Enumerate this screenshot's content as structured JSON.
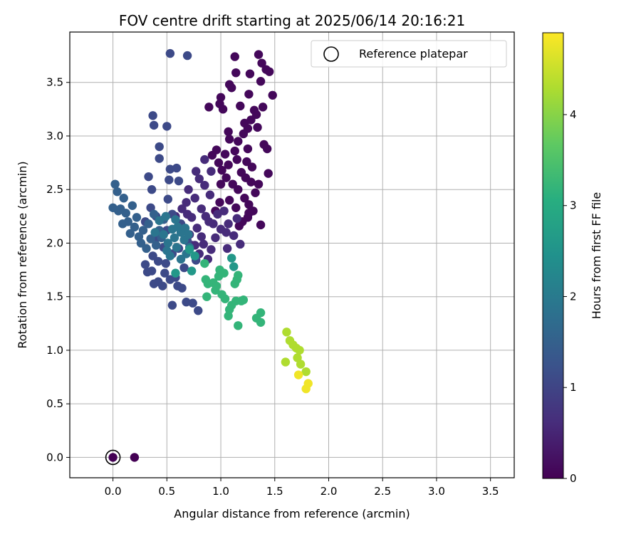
{
  "chart_data": {
    "type": "scatter",
    "title": "FOV centre drift starting at 2025/06/14 20:16:21",
    "xlabel": "Angular distance from reference (arcmin)",
    "ylabel": "Rotation from reference (arcmin)",
    "xlim": [
      -0.4,
      3.72
    ],
    "ylim": [
      -0.19,
      3.97
    ],
    "xticks": [
      0.0,
      0.5,
      1.0,
      1.5,
      2.0,
      2.5,
      3.0,
      3.5
    ],
    "xtick_labels": [
      "0.0",
      "0.5",
      "1.0",
      "1.5",
      "2.0",
      "2.5",
      "3.0",
      "3.5"
    ],
    "yticks": [
      0.0,
      0.5,
      1.0,
      1.5,
      2.0,
      2.5,
      3.0,
      3.5
    ],
    "ytick_labels": [
      "0.0",
      "0.5",
      "1.0",
      "1.5",
      "2.0",
      "2.5",
      "3.0",
      "3.5"
    ],
    "grid": true,
    "legend": {
      "position": "top-right",
      "entries": [
        "Reference platepar"
      ]
    },
    "colorbar": {
      "label": "Hours from first FF file",
      "range": [
        0,
        4.9
      ],
      "ticks": [
        0,
        1,
        2,
        3,
        4
      ],
      "tick_labels": [
        "0",
        "1",
        "2",
        "3",
        "4"
      ],
      "colormap": "viridis"
    },
    "reference_point": {
      "x": 0.0,
      "y": 0.0,
      "hours": 0.0
    },
    "points": [
      [
        1.13,
        3.74,
        0.1
      ],
      [
        1.35,
        3.76,
        0.1
      ],
      [
        1.38,
        3.68,
        0.1
      ],
      [
        1.42,
        3.62,
        0.1
      ],
      [
        1.45,
        3.6,
        0.1
      ],
      [
        1.14,
        3.59,
        0.1
      ],
      [
        1.27,
        3.58,
        0.1
      ],
      [
        1.37,
        3.51,
        0.1
      ],
      [
        1.08,
        3.48,
        0.1
      ],
      [
        1.1,
        3.45,
        0.1
      ],
      [
        1.26,
        3.39,
        0.1
      ],
      [
        1.48,
        3.38,
        0.1
      ],
      [
        1.0,
        3.36,
        0.1
      ],
      [
        0.99,
        3.3,
        0.1
      ],
      [
        1.18,
        3.28,
        0.1
      ],
      [
        0.89,
        3.27,
        0.1
      ],
      [
        1.02,
        3.25,
        0.1
      ],
      [
        1.39,
        3.27,
        0.1
      ],
      [
        1.31,
        3.24,
        0.1
      ],
      [
        1.33,
        3.2,
        0.1
      ],
      [
        1.28,
        3.15,
        0.1
      ],
      [
        1.22,
        3.12,
        0.1
      ],
      [
        1.25,
        3.07,
        0.1
      ],
      [
        1.34,
        3.08,
        0.1
      ],
      [
        1.21,
        3.02,
        0.1
      ],
      [
        1.07,
        3.04,
        0.1
      ],
      [
        1.08,
        2.97,
        0.1
      ],
      [
        1.16,
        2.95,
        0.1
      ],
      [
        1.4,
        2.92,
        0.1
      ],
      [
        1.43,
        2.88,
        0.1
      ],
      [
        1.25,
        2.88,
        0.1
      ],
      [
        1.13,
        2.86,
        0.1
      ],
      [
        1.04,
        2.83,
        0.1
      ],
      [
        0.96,
        2.87,
        0.1
      ],
      [
        0.92,
        2.82,
        0.1
      ],
      [
        1.15,
        2.78,
        0.1
      ],
      [
        1.24,
        2.76,
        0.1
      ],
      [
        1.29,
        2.71,
        0.1
      ],
      [
        1.44,
        2.65,
        0.1
      ],
      [
        1.07,
        2.73,
        0.1
      ],
      [
        0.98,
        2.75,
        0.1
      ],
      [
        1.01,
        2.68,
        0.1
      ],
      [
        1.19,
        2.66,
        0.1
      ],
      [
        1.23,
        2.61,
        0.1
      ],
      [
        1.28,
        2.57,
        0.1
      ],
      [
        1.35,
        2.55,
        0.1
      ],
      [
        1.05,
        2.61,
        0.1
      ],
      [
        1.11,
        2.55,
        0.1
      ],
      [
        1.16,
        2.5,
        0.1
      ],
      [
        1.32,
        2.47,
        0.1
      ],
      [
        1.22,
        2.42,
        0.1
      ],
      [
        1.26,
        2.36,
        0.1
      ],
      [
        1.08,
        2.4,
        0.1
      ],
      [
        1.14,
        2.33,
        0.1
      ],
      [
        1.3,
        2.3,
        0.1
      ],
      [
        1.25,
        2.24,
        0.1
      ],
      [
        1.2,
        2.2,
        0.1
      ],
      [
        1.37,
        2.17,
        0.1
      ],
      [
        1.17,
        2.16,
        0.1
      ],
      [
        1.26,
        2.28,
        0.1
      ],
      [
        1.0,
        2.55,
        0.1
      ],
      [
        0.95,
        2.3,
        0.1
      ],
      [
        0.99,
        2.38,
        0.1
      ],
      [
        0.2,
        0.0,
        0.0
      ],
      [
        0.85,
        2.78,
        0.6
      ],
      [
        0.91,
        2.67,
        0.6
      ],
      [
        0.85,
        2.54,
        0.6
      ],
      [
        0.9,
        2.45,
        0.6
      ],
      [
        0.82,
        2.32,
        0.6
      ],
      [
        0.86,
        2.25,
        0.6
      ],
      [
        0.93,
        2.18,
        0.6
      ],
      [
        1.0,
        2.13,
        0.6
      ],
      [
        0.95,
        2.05,
        0.6
      ],
      [
        1.05,
        2.1,
        0.6
      ],
      [
        0.97,
        2.27,
        0.6
      ],
      [
        0.89,
        2.2,
        0.6
      ],
      [
        0.82,
        2.06,
        0.6
      ],
      [
        0.78,
        2.14,
        0.6
      ],
      [
        0.73,
        2.24,
        0.6
      ],
      [
        0.76,
        2.42,
        0.6
      ],
      [
        0.7,
        2.5,
        0.6
      ],
      [
        0.68,
        2.38,
        0.6
      ],
      [
        0.69,
        2.27,
        0.6
      ],
      [
        0.64,
        2.32,
        0.6
      ],
      [
        0.62,
        2.17,
        0.6
      ],
      [
        0.58,
        2.25,
        0.6
      ],
      [
        0.71,
        2.08,
        0.6
      ],
      [
        0.76,
        1.98,
        0.6
      ],
      [
        0.8,
        1.9,
        0.6
      ],
      [
        0.88,
        1.85,
        0.6
      ],
      [
        0.84,
        1.99,
        0.6
      ],
      [
        0.91,
        1.94,
        0.6
      ],
      [
        0.8,
        2.6,
        0.6
      ],
      [
        0.77,
        2.67,
        0.6
      ],
      [
        1.07,
        2.18,
        0.6
      ],
      [
        1.12,
        2.07,
        0.6
      ],
      [
        1.18,
        1.99,
        0.6
      ],
      [
        1.15,
        2.23,
        0.6
      ],
      [
        1.03,
        2.3,
        0.6
      ],
      [
        1.06,
        1.95,
        0.6
      ],
      [
        0.73,
        1.98,
        0.6
      ],
      [
        0.33,
        2.62,
        1.1
      ],
      [
        0.43,
        2.79,
        1.1
      ],
      [
        0.43,
        2.9,
        1.1
      ],
      [
        0.38,
        3.1,
        1.1
      ],
      [
        0.37,
        3.19,
        1.1
      ],
      [
        0.5,
        3.09,
        1.1
      ],
      [
        0.53,
        3.77,
        1.1
      ],
      [
        0.69,
        3.75,
        1.1
      ],
      [
        0.53,
        2.69,
        1.1
      ],
      [
        0.59,
        2.7,
        1.1
      ],
      [
        0.52,
        2.59,
        1.1
      ],
      [
        0.61,
        2.58,
        1.1
      ],
      [
        0.36,
        2.5,
        1.1
      ],
      [
        0.51,
        2.41,
        1.1
      ],
      [
        0.4,
        2.25,
        1.1
      ],
      [
        0.55,
        2.27,
        1.1
      ],
      [
        0.63,
        2.18,
        1.1
      ],
      [
        0.5,
        2.12,
        1.1
      ],
      [
        0.41,
        2.05,
        1.1
      ],
      [
        0.47,
        1.96,
        1.1
      ],
      [
        0.55,
        1.9,
        1.1
      ],
      [
        0.37,
        1.88,
        1.1
      ],
      [
        0.42,
        1.83,
        1.1
      ],
      [
        0.49,
        1.81,
        1.1
      ],
      [
        0.3,
        1.8,
        1.1
      ],
      [
        0.36,
        1.74,
        1.1
      ],
      [
        0.48,
        1.72,
        1.1
      ],
      [
        0.53,
        1.66,
        1.1
      ],
      [
        0.42,
        1.64,
        1.1
      ],
      [
        0.38,
        1.62,
        1.1
      ],
      [
        0.46,
        1.6,
        1.1
      ],
      [
        0.6,
        1.6,
        1.1
      ],
      [
        0.64,
        1.58,
        1.1
      ],
      [
        0.58,
        1.68,
        1.1
      ],
      [
        0.66,
        1.77,
        1.1
      ],
      [
        0.55,
        1.42,
        1.1
      ],
      [
        0.68,
        1.45,
        1.1
      ],
      [
        0.79,
        1.37,
        1.1
      ],
      [
        0.74,
        1.44,
        1.1
      ],
      [
        0.32,
        1.73,
        1.1
      ],
      [
        0.61,
        1.95,
        1.1
      ],
      [
        0.69,
        2.02,
        1.1
      ],
      [
        0.77,
        1.84,
        1.1
      ],
      [
        0.35,
        2.33,
        1.1
      ],
      [
        0.3,
        2.2,
        1.1
      ],
      [
        0.02,
        2.55,
        1.5
      ],
      [
        0.04,
        2.48,
        1.5
      ],
      [
        0.1,
        2.42,
        1.5
      ],
      [
        0.0,
        2.33,
        1.5
      ],
      [
        0.05,
        2.3,
        1.5
      ],
      [
        0.12,
        2.28,
        1.5
      ],
      [
        0.18,
        2.35,
        1.5
      ],
      [
        0.14,
        2.2,
        1.5
      ],
      [
        0.2,
        2.15,
        1.5
      ],
      [
        0.09,
        2.18,
        1.5
      ],
      [
        0.16,
        2.09,
        1.5
      ],
      [
        0.24,
        2.06,
        1.5
      ],
      [
        0.28,
        2.12,
        1.5
      ],
      [
        0.33,
        2.18,
        1.5
      ],
      [
        0.26,
        2.0,
        1.5
      ],
      [
        0.31,
        1.95,
        1.5
      ],
      [
        0.35,
        2.04,
        1.5
      ],
      [
        0.4,
        1.98,
        1.5
      ],
      [
        0.43,
        2.12,
        1.5
      ],
      [
        0.47,
        2.22,
        1.5
      ],
      [
        0.38,
        2.27,
        1.5
      ],
      [
        0.45,
        2.05,
        1.5
      ],
      [
        0.22,
        2.24,
        1.5
      ],
      [
        0.07,
        2.32,
        1.5
      ],
      [
        0.51,
        2.0,
        1.9
      ],
      [
        0.57,
        2.05,
        1.9
      ],
      [
        0.63,
        2.1,
        1.9
      ],
      [
        0.59,
        1.96,
        1.9
      ],
      [
        0.66,
        2.03,
        1.9
      ],
      [
        0.71,
        1.96,
        1.9
      ],
      [
        0.68,
        1.9,
        1.9
      ],
      [
        0.63,
        1.85,
        1.9
      ],
      [
        0.53,
        1.88,
        1.9
      ],
      [
        0.5,
        1.93,
        1.9
      ],
      [
        0.55,
        2.13,
        1.9
      ],
      [
        0.49,
        2.25,
        1.9
      ],
      [
        0.43,
        2.21,
        1.9
      ],
      [
        0.39,
        2.1,
        1.9
      ],
      [
        0.47,
        2.08,
        1.9
      ],
      [
        0.6,
        2.15,
        1.9
      ],
      [
        0.67,
        2.14,
        1.9
      ],
      [
        0.7,
        2.08,
        1.9
      ],
      [
        0.58,
        2.22,
        1.9
      ],
      [
        0.71,
        1.94,
        2.6
      ],
      [
        0.76,
        1.88,
        2.6
      ],
      [
        0.73,
        1.74,
        2.6
      ],
      [
        0.58,
        1.72,
        2.6
      ],
      [
        1.1,
        1.86,
        2.6
      ],
      [
        1.12,
        1.78,
        2.6
      ],
      [
        0.85,
        1.81,
        3.2
      ],
      [
        0.86,
        1.66,
        3.2
      ],
      [
        0.93,
        1.63,
        3.2
      ],
      [
        0.98,
        1.69,
        3.2
      ],
      [
        1.03,
        1.72,
        3.2
      ],
      [
        0.99,
        1.75,
        3.2
      ],
      [
        0.95,
        1.56,
        3.2
      ],
      [
        0.88,
        1.62,
        3.2
      ],
      [
        0.87,
        1.5,
        3.2
      ],
      [
        1.01,
        1.52,
        3.2
      ],
      [
        1.04,
        1.48,
        3.2
      ],
      [
        1.08,
        1.38,
        3.2
      ],
      [
        1.1,
        1.42,
        3.2
      ],
      [
        1.14,
        1.46,
        3.2
      ],
      [
        1.16,
        1.7,
        3.2
      ],
      [
        1.13,
        1.62,
        3.2
      ],
      [
        1.15,
        1.66,
        3.2
      ],
      [
        1.19,
        1.46,
        3.2
      ],
      [
        1.21,
        1.47,
        3.2
      ],
      [
        1.07,
        1.32,
        3.2
      ],
      [
        1.16,
        1.23,
        3.2
      ],
      [
        1.33,
        1.3,
        3.2
      ],
      [
        1.37,
        1.35,
        3.2
      ],
      [
        1.37,
        1.26,
        3.2
      ],
      [
        0.96,
        1.6,
        3.2
      ],
      [
        1.61,
        1.17,
        4.3
      ],
      [
        1.64,
        1.09,
        4.3
      ],
      [
        1.67,
        1.05,
        4.3
      ],
      [
        1.7,
        1.02,
        4.3
      ],
      [
        1.73,
        1.0,
        4.3
      ],
      [
        1.71,
        0.93,
        4.3
      ],
      [
        1.74,
        0.87,
        4.3
      ],
      [
        1.6,
        0.89,
        4.3
      ],
      [
        1.79,
        0.8,
        4.3
      ],
      [
        1.72,
        0.77,
        4.8
      ],
      [
        1.79,
        0.64,
        4.8
      ],
      [
        1.81,
        0.69,
        4.8
      ]
    ]
  }
}
